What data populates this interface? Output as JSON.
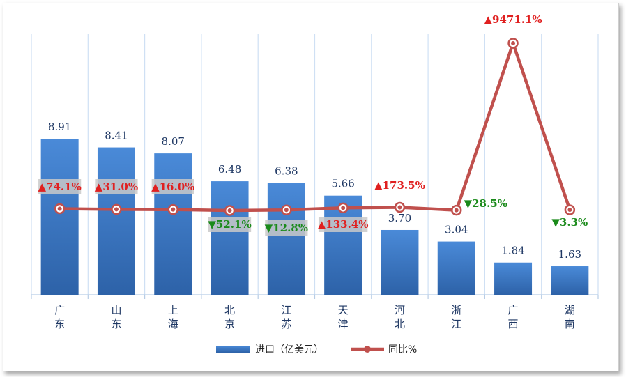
{
  "chart_data": {
    "type": "bar",
    "categories": [
      "广东",
      "山东",
      "上海",
      "北京",
      "江苏",
      "天津",
      "河北",
      "浙江",
      "广西",
      "湖南"
    ],
    "series": [
      {
        "name": "进口（亿美元）",
        "type": "bar",
        "values": [
          8.91,
          8.41,
          8.07,
          6.48,
          6.38,
          5.66,
          3.7,
          3.04,
          1.84,
          1.63
        ],
        "labels": [
          "8.91",
          "8.41",
          "8.07",
          "6.48",
          "6.38",
          "5.66",
          "3.70",
          "3.04",
          "1.84",
          "1.63"
        ]
      },
      {
        "name": "同比%",
        "type": "line",
        "values": [
          74.1,
          31.0,
          16.0,
          -52.1,
          -12.8,
          133.4,
          173.5,
          -28.5,
          9471.1,
          -3.3
        ],
        "labels": [
          "▲74.1%",
          "▲31.0%",
          "▲16.0%",
          "▼52.1%",
          "▼12.8%",
          "▲133.4%",
          "▲173.5%",
          "▼28.5%",
          "▲9471.1%",
          "▼3.3%"
        ]
      }
    ],
    "bar_ylim": [
      0,
      10
    ],
    "grid": "vertical",
    "legend_position": "bottom",
    "colors": {
      "bar": "#3a78c9",
      "line": "#c0504d",
      "up": "#e02020",
      "down": "#1a8a1a"
    }
  }
}
